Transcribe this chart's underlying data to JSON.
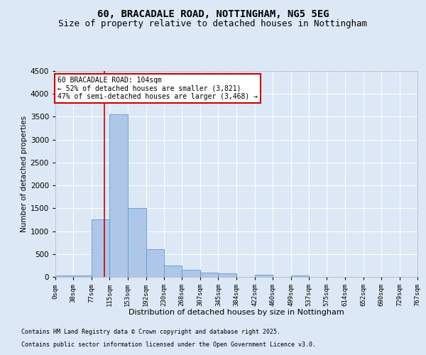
{
  "title": "60, BRACADALE ROAD, NOTTINGHAM, NG5 5EG",
  "subtitle": "Size of property relative to detached houses in Nottingham",
  "xlabel": "Distribution of detached houses by size in Nottingham",
  "ylabel": "Number of detached properties",
  "bin_edges": [
    0,
    38,
    77,
    115,
    153,
    192,
    230,
    268,
    307,
    345,
    384,
    422,
    460,
    499,
    537,
    575,
    614,
    652,
    690,
    729,
    767
  ],
  "bar_values": [
    30,
    30,
    1250,
    3550,
    1500,
    600,
    250,
    150,
    100,
    70,
    0,
    50,
    0,
    30,
    0,
    0,
    0,
    0,
    0,
    0
  ],
  "bar_color": "#aec6e8",
  "bar_edgecolor": "#5b9bd5",
  "property_size": 104,
  "vline_color": "#cc0000",
  "ylim": [
    0,
    4500
  ],
  "yticks": [
    0,
    500,
    1000,
    1500,
    2000,
    2500,
    3000,
    3500,
    4000,
    4500
  ],
  "annotation_title": "60 BRACADALE ROAD: 104sqm",
  "annotation_line1": "← 52% of detached houses are smaller (3,821)",
  "annotation_line2": "47% of semi-detached houses are larger (3,468) →",
  "annotation_box_color": "#ffffff",
  "annotation_box_edgecolor": "#cc0000",
  "footer1": "Contains HM Land Registry data © Crown copyright and database right 2025.",
  "footer2": "Contains public sector information licensed under the Open Government Licence v3.0.",
  "bg_color": "#dce8f5",
  "grid_color": "#ffffff",
  "title_fontsize": 10,
  "subtitle_fontsize": 9,
  "tick_labels": [
    "0sqm",
    "38sqm",
    "77sqm",
    "115sqm",
    "153sqm",
    "192sqm",
    "230sqm",
    "268sqm",
    "307sqm",
    "345sqm",
    "384sqm",
    "422sqm",
    "460sqm",
    "499sqm",
    "537sqm",
    "575sqm",
    "614sqm",
    "652sqm",
    "690sqm",
    "729sqm",
    "767sqm"
  ]
}
